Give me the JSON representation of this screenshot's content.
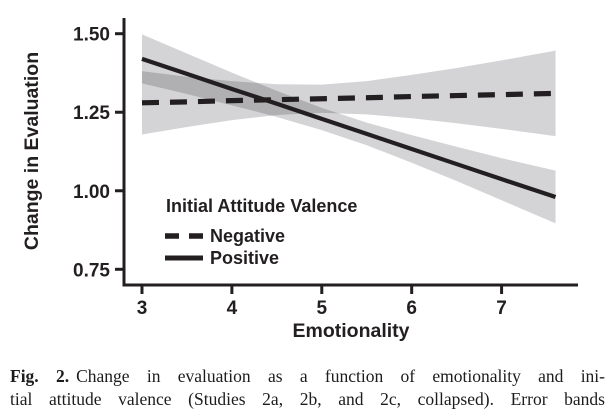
{
  "figure": {
    "caption": {
      "label": "Fig. 2.",
      "line1": "Change in evaluation as a function of emotionality and ini-",
      "line2": "tial attitude valence (Studies 2a, 2b, and 2c, collapsed). Error bands"
    }
  },
  "chart_data": {
    "type": "line",
    "title": "",
    "xlabel": "Emotionality",
    "ylabel": "Change in Evaluation",
    "xlim": [
      2.8,
      7.85
    ],
    "ylim": [
      0.7,
      1.55
    ],
    "x_ticks": [
      3,
      4,
      5,
      6,
      7
    ],
    "y_ticks": [
      0.75,
      1.0,
      1.25,
      1.5
    ],
    "y_tick_labels": [
      "0.75",
      "1.00",
      "1.25",
      "1.50"
    ],
    "grid": false,
    "legend": {
      "title": "Initial Attitude Valence",
      "position": "inside-bottom-left",
      "items": [
        {
          "label": "Negative",
          "style": "dashed"
        },
        {
          "label": "Positive",
          "style": "solid"
        }
      ]
    },
    "series": [
      {
        "name": "Negative",
        "style": "dashed",
        "x": [
          3.0,
          3.5,
          4.0,
          4.5,
          5.0,
          5.5,
          6.0,
          6.5,
          7.0,
          7.6
        ],
        "y": [
          1.28,
          1.283,
          1.287,
          1.29,
          1.293,
          1.296,
          1.3,
          1.303,
          1.306,
          1.31
        ],
        "band_lo": [
          1.179,
          1.203,
          1.225,
          1.241,
          1.248,
          1.243,
          1.231,
          1.215,
          1.197,
          1.174
        ],
        "band_hi": [
          1.381,
          1.363,
          1.349,
          1.339,
          1.338,
          1.349,
          1.369,
          1.391,
          1.415,
          1.446
        ]
      },
      {
        "name": "Positive",
        "style": "solid",
        "x": [
          3.0,
          3.5,
          4.0,
          4.5,
          5.0,
          5.5,
          6.0,
          6.5,
          7.0,
          7.6
        ],
        "y": [
          1.42,
          1.372,
          1.324,
          1.277,
          1.229,
          1.181,
          1.133,
          1.085,
          1.037,
          0.98
        ],
        "band_lo": [
          1.342,
          1.308,
          1.272,
          1.235,
          1.193,
          1.145,
          1.089,
          1.031,
          0.97,
          0.896
        ],
        "band_hi": [
          1.498,
          1.437,
          1.376,
          1.318,
          1.264,
          1.217,
          1.177,
          1.14,
          1.104,
          1.064
        ]
      }
    ],
    "colors": {
      "line": "#231f20",
      "band": "#d4d4d6",
      "band_overlap": "#b9b9bb",
      "text": "#231f20",
      "background": "#ffffff"
    }
  }
}
